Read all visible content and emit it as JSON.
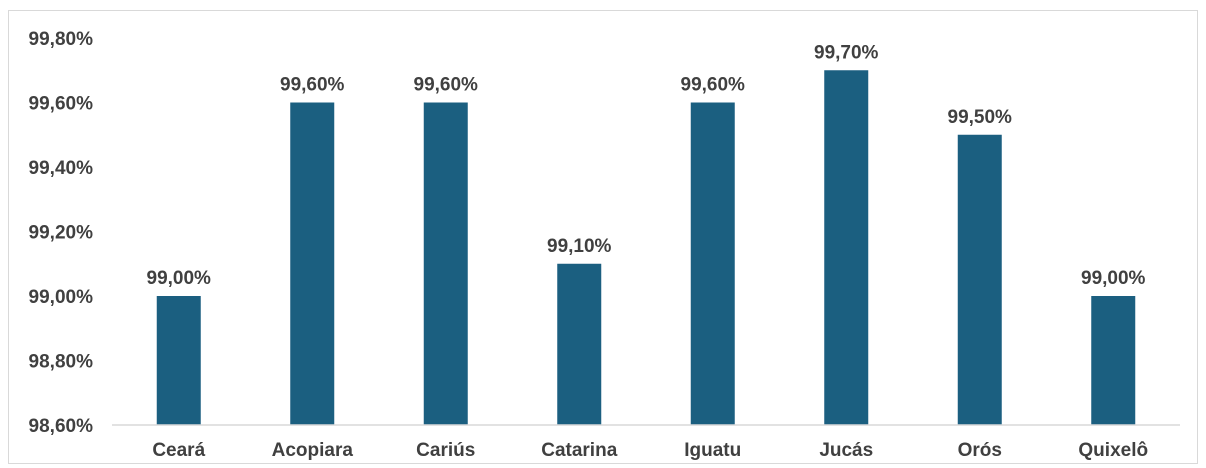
{
  "chart_data": {
    "type": "bar",
    "categories": [
      "Ceará",
      "Acopiara",
      "Cariús",
      "Catarina",
      "Iguatu",
      "Jucás",
      "Orós",
      "Quixelô"
    ],
    "values": [
      99.0,
      99.6,
      99.6,
      99.1,
      99.6,
      99.7,
      99.5,
      99.0
    ],
    "data_labels": [
      "99,00%",
      "99,60%",
      "99,60%",
      "99,10%",
      "99,60%",
      "99,70%",
      "99,50%",
      "99,00%"
    ],
    "ylim": [
      98.6,
      99.8
    ],
    "yticks": [
      98.6,
      98.8,
      99.0,
      99.2,
      99.4,
      99.6,
      99.8
    ],
    "ytick_labels": [
      "98,60%",
      "98,80%",
      "99,00%",
      "99,20%",
      "99,40%",
      "99,60%",
      "99,80%"
    ],
    "bar_color": "#1b5f80",
    "grid": false,
    "legend": "none",
    "title": "",
    "xlabel": "",
    "ylabel": ""
  }
}
